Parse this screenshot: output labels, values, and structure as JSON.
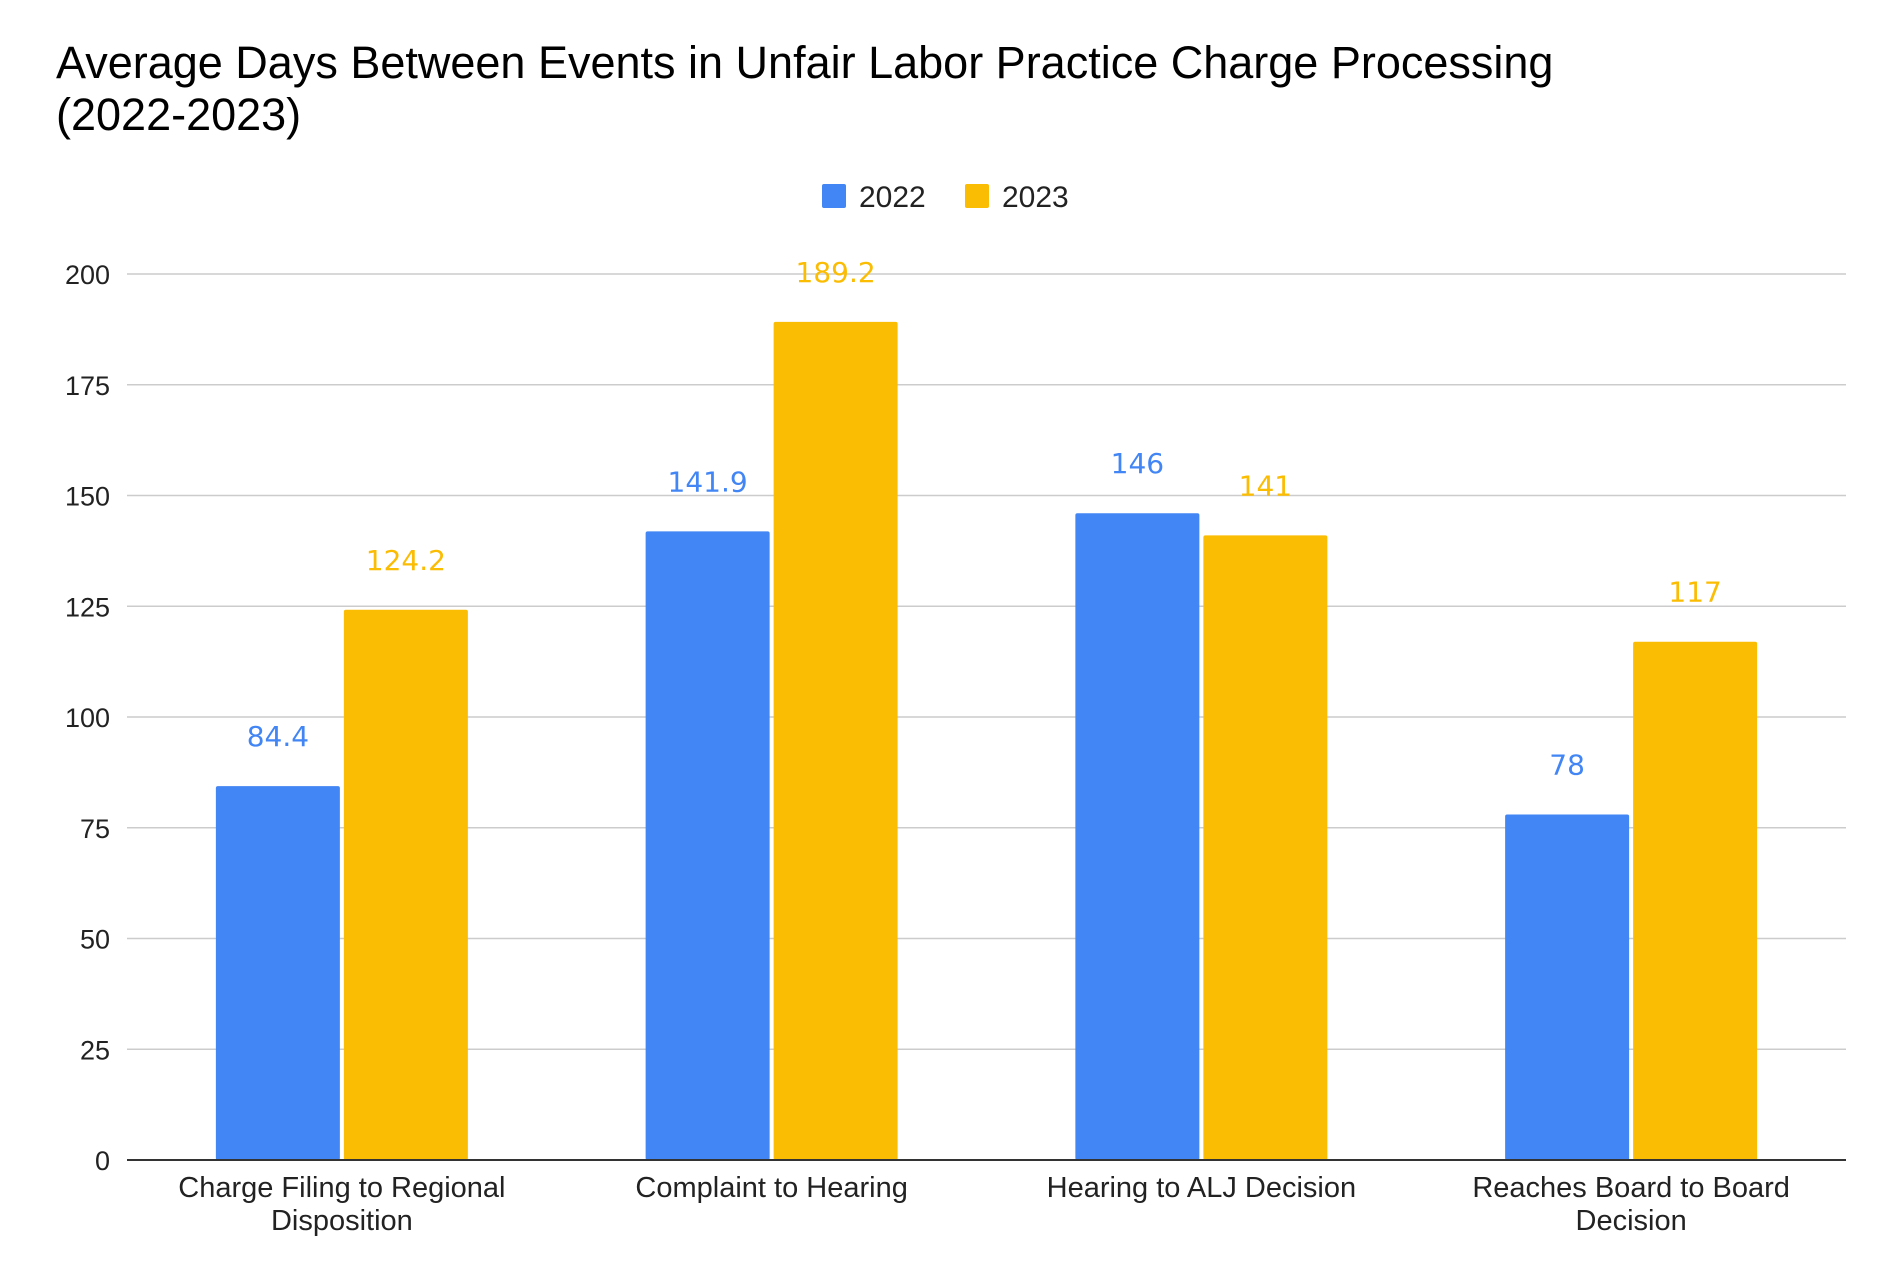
{
  "chart_data": {
    "type": "bar",
    "title_lines": [
      "Average Days Between Events in Unfair Labor Practice Charge Processing",
      "(2022-2023)"
    ],
    "categories": [
      [
        "Charge Filing to Regional",
        "Disposition"
      ],
      [
        "Complaint to Hearing"
      ],
      [
        "Hearing to ALJ Decision"
      ],
      [
        "Reaches Board to Board",
        "Decision"
      ]
    ],
    "series": [
      {
        "name": "2022",
        "color": "#4285F4",
        "values": [
          84.4,
          141.9,
          146,
          78
        ],
        "labels": [
          "84.4",
          "141.9",
          "146",
          "78"
        ]
      },
      {
        "name": "2023",
        "color": "#FBBC04",
        "values": [
          124.2,
          189.2,
          141,
          117
        ],
        "labels": [
          "124.2",
          "189.2",
          "141",
          "117"
        ]
      }
    ],
    "ylim": [
      0,
      200
    ],
    "yticks": [
      "0",
      "25",
      "50",
      "75",
      "100",
      "125",
      "150",
      "175",
      "200"
    ],
    "grid": true,
    "legend_position": "top-center"
  }
}
